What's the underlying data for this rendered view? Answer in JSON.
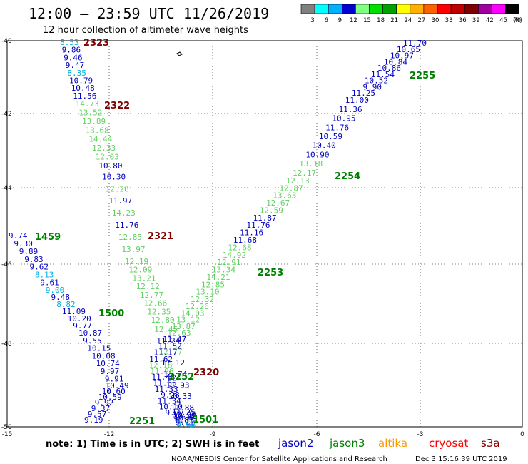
{
  "header": {
    "title": "12:00 – 23:59 UTC 11/26/2019",
    "subtitle": "12 hour collection of altimeter wave heights"
  },
  "legend": {
    "ticks": [
      "3",
      "6",
      "9",
      "12",
      "15",
      "18",
      "21",
      "24",
      "27",
      "30",
      "33",
      "36",
      "39",
      "42",
      "45",
      "70"
    ],
    "unit": "(ft)",
    "colors": [
      "#808080",
      "#00ffff",
      "#00b0ff",
      "#0000d0",
      "#80ff80",
      "#00e000",
      "#00a000",
      "#ffff00",
      "#ffb000",
      "#ff6000",
      "#ff0000",
      "#c00000",
      "#800000",
      "#a000a0",
      "#ff00ff",
      "#000000"
    ]
  },
  "axes": {
    "y_labels": [
      "-40",
      "-42",
      "-44",
      "-46",
      "-48",
      "-50"
    ],
    "x_labels": [
      "-15",
      "-12",
      "-9",
      "-6",
      "-3",
      "0"
    ]
  },
  "colors": {
    "jason2": "#0000c0",
    "jason3": "#008000",
    "light_green": "#60d060",
    "cyan": "#00b0e0",
    "dark_red": "#800000"
  },
  "passes": [
    {
      "label": "2323",
      "color": "#800000"
    },
    {
      "label": "2322",
      "color": "#800000"
    },
    {
      "label": "2321",
      "color": "#800000"
    },
    {
      "label": "2320",
      "color": "#800000"
    },
    {
      "label": "2255",
      "color": "#008000"
    },
    {
      "label": "2254",
      "color": "#008000"
    },
    {
      "label": "2253",
      "color": "#008000"
    },
    {
      "label": "2252",
      "color": "#008000"
    },
    {
      "label": "2251",
      "color": "#008000"
    },
    {
      "label": "1459",
      "color": "#008000"
    },
    {
      "label": "1500",
      "color": "#008000"
    },
    {
      "label": "1501",
      "color": "#008000"
    }
  ],
  "tracks": {
    "track_2323_2322": [
      {
        "v": "8.53",
        "c": "cyan"
      },
      {
        "v": "9.86",
        "c": "blue"
      },
      {
        "v": "9.46",
        "c": "blue"
      },
      {
        "v": "9.47",
        "c": "blue"
      },
      {
        "v": "8.35",
        "c": "cyan"
      },
      {
        "v": "10.79",
        "c": "blue"
      },
      {
        "v": "10.48",
        "c": "blue"
      },
      {
        "v": "11.56",
        "c": "blue"
      },
      {
        "v": "14.73",
        "c": "green"
      },
      {
        "v": "13.52",
        "c": "green"
      },
      {
        "v": "13.89",
        "c": "green"
      },
      {
        "v": "13.68",
        "c": "green"
      },
      {
        "v": "14.44",
        "c": "green"
      },
      {
        "v": "12.33",
        "c": "green"
      },
      {
        "v": "12.03",
        "c": "green"
      },
      {
        "v": "10.80",
        "c": "blue"
      },
      {
        "v": "10.30",
        "c": "blue"
      },
      {
        "v": "12.26",
        "c": "green"
      },
      {
        "v": "11.97",
        "c": "blue"
      },
      {
        "v": "14.23",
        "c": "green"
      },
      {
        "v": "11.76",
        "c": "blue"
      },
      {
        "v": "12.85",
        "c": "green"
      },
      {
        "v": "13.97",
        "c": "green"
      },
      {
        "v": "12.19",
        "c": "green"
      },
      {
        "v": "12.09",
        "c": "green"
      },
      {
        "v": "13.21",
        "c": "green"
      },
      {
        "v": "12.12",
        "c": "green"
      },
      {
        "v": "12.77",
        "c": "green"
      },
      {
        "v": "12.66",
        "c": "green"
      },
      {
        "v": "12.35",
        "c": "green"
      },
      {
        "v": "12.80",
        "c": "green"
      },
      {
        "v": "12.45",
        "c": "green"
      },
      {
        "v": "11.24",
        "c": "blue"
      },
      {
        "v": "12.77",
        "c": "green"
      },
      {
        "v": "11.12",
        "c": "blue"
      },
      {
        "v": "11.74",
        "c": "blue"
      },
      {
        "v": "11.93",
        "c": "blue"
      },
      {
        "v": "10.33",
        "c": "blue"
      },
      {
        "v": "11.88",
        "c": "blue"
      },
      {
        "v": "11.25",
        "c": "blue"
      },
      {
        "v": "10.96",
        "c": "blue"
      },
      {
        "v": "10.48",
        "c": "blue"
      },
      {
        "v": "10.49",
        "c": "blue"
      },
      {
        "v": "9.87",
        "c": "blue"
      },
      {
        "v": "9.12",
        "c": "blue"
      },
      {
        "v": "8.60",
        "c": "cyan"
      },
      {
        "v": "8.56",
        "c": "cyan"
      }
    ],
    "track_1459": [
      {
        "v": "9.74",
        "c": "blue"
      },
      {
        "v": "9.30",
        "c": "blue"
      },
      {
        "v": "9.89",
        "c": "blue"
      },
      {
        "v": "9.83",
        "c": "blue"
      },
      {
        "v": "9.62",
        "c": "blue"
      },
      {
        "v": "8.13",
        "c": "cyan"
      },
      {
        "v": "9.61",
        "c": "blue"
      },
      {
        "v": "9.00",
        "c": "cyan"
      },
      {
        "v": "9.48",
        "c": "blue"
      },
      {
        "v": "8.82",
        "c": "cyan"
      },
      {
        "v": "11.09",
        "c": "blue"
      },
      {
        "v": "10.20",
        "c": "blue"
      },
      {
        "v": "9.77",
        "c": "blue"
      },
      {
        "v": "10.87",
        "c": "blue"
      },
      {
        "v": "9.55",
        "c": "blue"
      },
      {
        "v": "10.15",
        "c": "blue"
      },
      {
        "v": "10.08",
        "c": "blue"
      },
      {
        "v": "10.74",
        "c": "blue"
      },
      {
        "v": "9.97",
        "c": "blue"
      },
      {
        "v": "9.91",
        "c": "blue"
      },
      {
        "v": "10.49",
        "c": "blue"
      },
      {
        "v": "10.60",
        "c": "blue"
      },
      {
        "v": "10.59",
        "c": "blue"
      },
      {
        "v": "9.92",
        "c": "blue"
      },
      {
        "v": "9.37",
        "c": "blue"
      },
      {
        "v": "9.57",
        "c": "blue"
      },
      {
        "v": "9.19",
        "c": "blue"
      }
    ],
    "track_2255_2253": [
      {
        "v": "11.70",
        "c": "blue"
      },
      {
        "v": "10.65",
        "c": "blue"
      },
      {
        "v": "10.97",
        "c": "blue"
      },
      {
        "v": "10.84",
        "c": "blue"
      },
      {
        "v": "10.86",
        "c": "blue"
      },
      {
        "v": "11.54",
        "c": "blue"
      },
      {
        "v": "10.52",
        "c": "blue"
      },
      {
        "v": "9.90",
        "c": "blue"
      },
      {
        "v": "11.25",
        "c": "blue"
      },
      {
        "v": "11.00",
        "c": "blue"
      },
      {
        "v": "11.36",
        "c": "blue"
      },
      {
        "v": "10.95",
        "c": "blue"
      },
      {
        "v": "11.76",
        "c": "blue"
      },
      {
        "v": "10.59",
        "c": "blue"
      },
      {
        "v": "10.40",
        "c": "blue"
      },
      {
        "v": "10.90",
        "c": "blue"
      },
      {
        "v": "13.18",
        "c": "green"
      },
      {
        "v": "12.17",
        "c": "green"
      },
      {
        "v": "12.13",
        "c": "green"
      },
      {
        "v": "12.87",
        "c": "green"
      },
      {
        "v": "13.63",
        "c": "green"
      },
      {
        "v": "12.67",
        "c": "green"
      },
      {
        "v": "12.59",
        "c": "green"
      },
      {
        "v": "11.87",
        "c": "blue"
      },
      {
        "v": "11.76",
        "c": "blue"
      },
      {
        "v": "11.16",
        "c": "blue"
      },
      {
        "v": "11.68",
        "c": "blue"
      },
      {
        "v": "12.68",
        "c": "green"
      },
      {
        "v": "14.92",
        "c": "green"
      },
      {
        "v": "12.91",
        "c": "green"
      },
      {
        "v": "13.34",
        "c": "green"
      },
      {
        "v": "14.21",
        "c": "green"
      },
      {
        "v": "12.85",
        "c": "green"
      },
      {
        "v": "13.10",
        "c": "green"
      },
      {
        "v": "12.32",
        "c": "green"
      },
      {
        "v": "12.26",
        "c": "green"
      },
      {
        "v": "14.03",
        "c": "green"
      },
      {
        "v": "13.12",
        "c": "green"
      },
      {
        "v": "13.87",
        "c": "green"
      },
      {
        "v": "12.63",
        "c": "green"
      },
      {
        "v": "11.47",
        "c": "blue"
      },
      {
        "v": "11.52",
        "c": "blue"
      },
      {
        "v": "11.17",
        "c": "blue"
      },
      {
        "v": "11.62",
        "c": "blue"
      },
      {
        "v": "12.18",
        "c": "green"
      },
      {
        "v": "11.96",
        "c": "green"
      },
      {
        "v": "11.48",
        "c": "blue"
      },
      {
        "v": "11.65",
        "c": "blue"
      },
      {
        "v": "11.33",
        "c": "blue"
      },
      {
        "v": "9.28",
        "c": "blue"
      },
      {
        "v": "11.34",
        "c": "blue"
      },
      {
        "v": "10.10",
        "c": "blue"
      },
      {
        "v": "9.77",
        "c": "blue"
      }
    ]
  },
  "note": "note:  1) Time is in UTC;  2) SWH is in feet",
  "satellites": [
    {
      "name": "jason2",
      "color": "#0000c0"
    },
    {
      "name": "jason3",
      "color": "#008000"
    },
    {
      "name": "altika",
      "color": "#ff9900"
    },
    {
      "name": "cryosat",
      "color": "#ff0000"
    },
    {
      "name": "s3a",
      "color": "#800000"
    }
  ],
  "footer": {
    "org": "NOAA/NESDIS Center for Satellite Applications and Research",
    "timestamp": "Dec  3 15:16:39 UTC 2019"
  }
}
